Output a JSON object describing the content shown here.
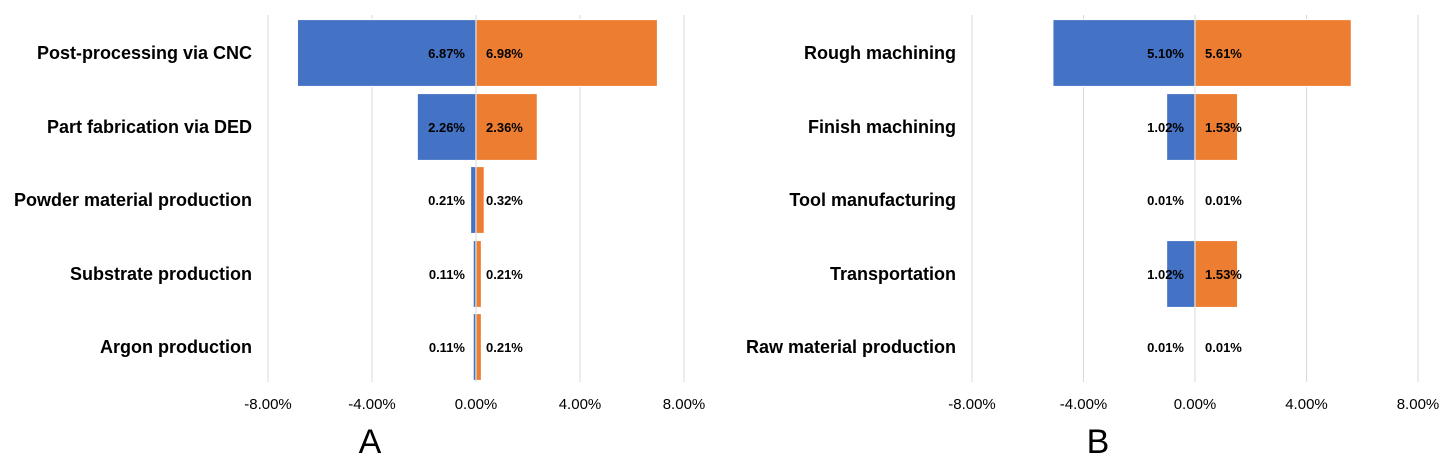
{
  "chart_data": [
    {
      "type": "bar",
      "orientation": "horizontal",
      "stacked": "diverging",
      "panel_label": "A",
      "categories": [
        "Post-processing via CNC",
        "Part fabrication via DED",
        "Powder material production",
        "Substrate production",
        "Argon production"
      ],
      "series": [
        {
          "values": [
            -6.87,
            -2.26,
            -0.21,
            -0.11,
            -0.11
          ],
          "labels": [
            "6.87%",
            "2.26%",
            "0.21%",
            "0.11%",
            "0.11%"
          ],
          "color": "#4472c4"
        },
        {
          "values": [
            6.98,
            2.36,
            0.32,
            0.21,
            0.21
          ],
          "labels": [
            "6.98%",
            "2.36%",
            "0.32%",
            "0.21%",
            "0.21%"
          ],
          "color": "#ed7d31"
        }
      ],
      "xlim": [
        -8,
        8
      ],
      "xticks": [
        -8,
        -4,
        0,
        4,
        8
      ],
      "xtick_labels": [
        "-8.00%",
        "-4.00%",
        "0.00%",
        "4.00%",
        "8.00%"
      ],
      "grid": "vertical"
    },
    {
      "type": "bar",
      "orientation": "horizontal",
      "stacked": "diverging",
      "panel_label": "B",
      "categories": [
        "Rough machining",
        "Finish machining",
        "Tool manufacturing",
        "Transportation",
        "Raw material production"
      ],
      "series": [
        {
          "values": [
            -5.1,
            -1.02,
            -0.01,
            -1.02,
            -0.01
          ],
          "labels": [
            "5.10%",
            "1.02%",
            "0.01%",
            "1.02%",
            "0.01%"
          ],
          "color": "#4472c4"
        },
        {
          "values": [
            5.61,
            1.53,
            0.01,
            1.53,
            0.01
          ],
          "labels": [
            "5.61%",
            "1.53%",
            "0.01%",
            "1.53%",
            "0.01%"
          ],
          "color": "#ed7d31"
        }
      ],
      "xlim": [
        -8,
        8
      ],
      "xticks": [
        -8,
        -4,
        0,
        4,
        8
      ],
      "xtick_labels": [
        "-8.00%",
        "-4.00%",
        "0.00%",
        "4.00%",
        "8.00%"
      ],
      "grid": "vertical"
    }
  ]
}
